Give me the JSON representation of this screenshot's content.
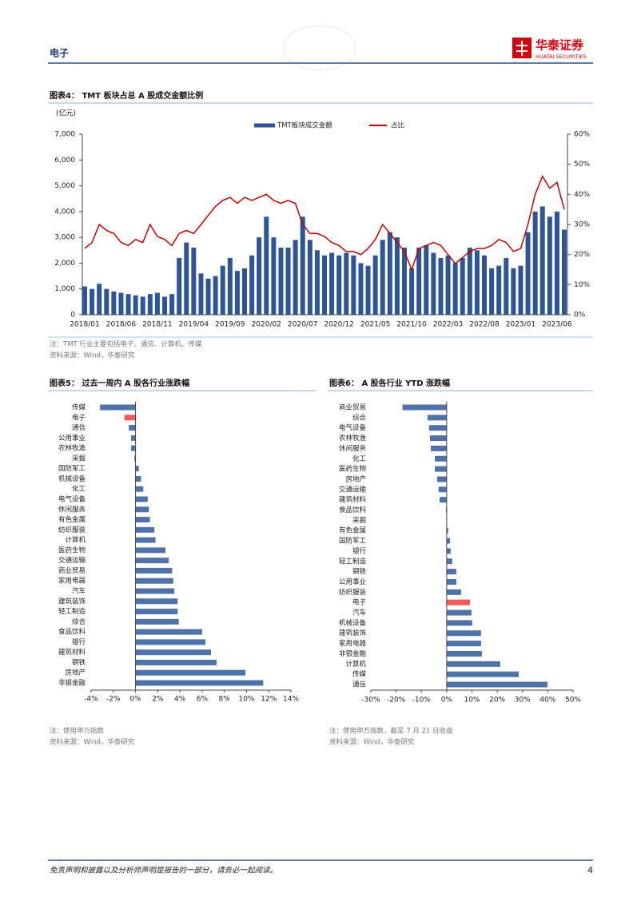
{
  "header": {
    "section": "电子",
    "brand": "华泰证券",
    "brand_en": "HUATAI SECURITIES"
  },
  "chart_data": [
    {
      "type": "combo",
      "title": "图表4： TMT 板块占总 A 股成交金额比例",
      "ylabel": "(亿元)",
      "categories": [
        "2018/01",
        null,
        null,
        null,
        null,
        "2018/06",
        null,
        null,
        null,
        null,
        "2018/11",
        null,
        null,
        null,
        null,
        "2019/04",
        null,
        null,
        null,
        null,
        "2019/09",
        null,
        null,
        null,
        null,
        "2020/02",
        null,
        null,
        null,
        null,
        "2020/07",
        null,
        null,
        null,
        null,
        "2020/12",
        null,
        null,
        null,
        null,
        "2021/05",
        null,
        null,
        null,
        null,
        "2021/10",
        null,
        null,
        null,
        null,
        "2022/03",
        null,
        null,
        null,
        null,
        "2022/08",
        null,
        null,
        null,
        null,
        "2023/01",
        null,
        null,
        null,
        null,
        "2023/06",
        null
      ],
      "series": [
        {
          "name": "TMT板块成交金额",
          "type": "bar",
          "color": "#2f5597",
          "values": [
            1100,
            1000,
            1200,
            1000,
            900,
            850,
            800,
            750,
            700,
            800,
            850,
            700,
            800,
            2200,
            2800,
            2600,
            1600,
            1400,
            1500,
            1900,
            2200,
            1700,
            1800,
            2300,
            3000,
            3800,
            3000,
            2600,
            2600,
            2900,
            3800,
            2900,
            2500,
            2300,
            2400,
            2300,
            2400,
            2300,
            2000,
            1900,
            2300,
            2900,
            3200,
            3000,
            2600,
            1800,
            2600,
            2700,
            2400,
            2200,
            2300,
            2000,
            2200,
            2600,
            2500,
            2300,
            1800,
            1900,
            2200,
            1800,
            1900,
            3200,
            4000,
            4200,
            3800,
            4000,
            3300
          ]
        },
        {
          "name": "占比",
          "type": "line",
          "axis": "y2",
          "color": "#c00000",
          "values": [
            22,
            24,
            30,
            28,
            27,
            24,
            23,
            25,
            24,
            30,
            26,
            25,
            23,
            27,
            28,
            27,
            30,
            33,
            36,
            38,
            39,
            37,
            39,
            38,
            39,
            40,
            38,
            37,
            38,
            37,
            30,
            27,
            27,
            26,
            24,
            23,
            21,
            21,
            20,
            22,
            25,
            30,
            27,
            24,
            21,
            15,
            22,
            23,
            24,
            23,
            20,
            17,
            19,
            21,
            22,
            22,
            23,
            25,
            24,
            21,
            22,
            30,
            40,
            46,
            42,
            44,
            35
          ]
        }
      ],
      "ylim": [
        0,
        7000
      ],
      "yticks": [
        0,
        {
          "value": 1000,
          "label": "1,000"
        },
        {
          "value": 2000,
          "label": "2,000"
        },
        {
          "value": 3000,
          "label": "3,000"
        },
        {
          "value": 4000,
          "label": "4,000"
        },
        {
          "value": 5000,
          "label": "5,000"
        },
        {
          "value": 6000,
          "label": "6,000"
        },
        {
          "value": 7000,
          "label": "7,000"
        }
      ],
      "y2lim": [
        0,
        60
      ],
      "y2ticks": [
        {
          "value": 0,
          "label": "0%"
        },
        {
          "value": 10,
          "label": "10%"
        },
        {
          "value": 20,
          "label": "20%"
        },
        {
          "value": 30,
          "label": "30%"
        },
        {
          "value": 40,
          "label": "40%"
        },
        {
          "value": 50,
          "label": "50%"
        },
        {
          "value": 60,
          "label": "60%"
        }
      ],
      "legend": "top",
      "note": "注：TMT 行业主要包括电子、通信、计算机、传媒",
      "source": "资料来源：Wind，华泰研究"
    },
    {
      "type": "barh",
      "title": "图表5： 过去一周内 A 股各行业涨跌幅",
      "categories": [
        "传媒",
        "电子",
        "通信",
        "公用事业",
        "农林牧渔",
        "采掘",
        "国防军工",
        "机械设备",
        "化工",
        "电气设备",
        "休闲服务",
        "有色金属",
        "纺织服装",
        "计算机",
        "医药生物",
        "交通运输",
        "商业贸易",
        "家用电器",
        "汽车",
        "建筑装饰",
        "轻工制造",
        "综合",
        "食品饮料",
        "银行",
        "建筑材料",
        "钢铁",
        "房地产",
        "非银金融"
      ],
      "values": [
        -3.2,
        -1.0,
        -0.6,
        -0.4,
        -0.4,
        -0.1,
        0.3,
        0.5,
        0.7,
        1.1,
        1.2,
        1.3,
        1.7,
        1.8,
        2.7,
        3.0,
        3.3,
        3.4,
        3.5,
        3.8,
        3.8,
        3.9,
        6.0,
        6.3,
        6.8,
        7.3,
        9.9,
        11.5
      ],
      "colors": [
        "#4f73a8",
        "#f05a5a",
        "#4f73a8",
        "#4f73a8",
        "#4f73a8",
        "#4f73a8",
        "#4f73a8",
        "#4f73a8",
        "#4f73a8",
        "#4f73a8",
        "#4f73a8",
        "#4f73a8",
        "#4f73a8",
        "#4f73a8",
        "#4f73a8",
        "#4f73a8",
        "#4f73a8",
        "#4f73a8",
        "#4f73a8",
        "#4f73a8",
        "#4f73a8",
        "#4f73a8",
        "#4f73a8",
        "#4f73a8",
        "#4f73a8",
        "#4f73a8",
        "#4f73a8",
        "#4f73a8"
      ],
      "xlim": [
        -4,
        14
      ],
      "xticks": [
        {
          "value": -4,
          "label": "-4%"
        },
        {
          "value": -2,
          "label": "-2%"
        },
        {
          "value": 0,
          "label": "0%"
        },
        {
          "value": 2,
          "label": "2%"
        },
        {
          "value": 4,
          "label": "4%"
        },
        {
          "value": 6,
          "label": "6%"
        },
        {
          "value": 8,
          "label": "8%"
        },
        {
          "value": 10,
          "label": "10%"
        },
        {
          "value": 12,
          "label": "12%"
        },
        {
          "value": 14,
          "label": "14%"
        }
      ],
      "note": "注：使用申万指数",
      "source": "资料来源：Wind，华泰研究"
    },
    {
      "type": "barh",
      "title": "图表6： A 股各行业 YTD 涨跌幅",
      "categories": [
        "商业贸易",
        "综合",
        "电气设备",
        "农林牧渔",
        "休闲服务",
        "化工",
        "医药生物",
        "房地产",
        "交通运输",
        "建筑材料",
        "食品饮料",
        "采掘",
        "有色金属",
        "国防军工",
        "银行",
        "轻工制造",
        "钢铁",
        "公用事业",
        "纺织服装",
        "电子",
        "汽车",
        "机械设备",
        "建筑装饰",
        "家用电器",
        "非银金融",
        "计算机",
        "传媒",
        "通信"
      ],
      "values": [
        -17.5,
        -7.6,
        -7.0,
        -6.6,
        -6.3,
        -4.7,
        -4.7,
        -3.8,
        -3.2,
        -2.8,
        -0.3,
        0.1,
        0.6,
        1.3,
        1.6,
        2.2,
        3.8,
        3.8,
        5.7,
        9.2,
        9.8,
        10.1,
        13.6,
        13.6,
        13.9,
        21.2,
        28.5,
        39.9
      ],
      "colors": [
        "#4f73a8",
        "#4f73a8",
        "#4f73a8",
        "#4f73a8",
        "#4f73a8",
        "#4f73a8",
        "#4f73a8",
        "#4f73a8",
        "#4f73a8",
        "#4f73a8",
        "#4f73a8",
        "#4f73a8",
        "#4f73a8",
        "#4f73a8",
        "#4f73a8",
        "#4f73a8",
        "#4f73a8",
        "#4f73a8",
        "#4f73a8",
        "#f05a5a",
        "#4f73a8",
        "#4f73a8",
        "#4f73a8",
        "#4f73a8",
        "#4f73a8",
        "#4f73a8",
        "#4f73a8",
        "#4f73a8"
      ],
      "xlim": [
        -30,
        50
      ],
      "xticks": [
        {
          "value": -30,
          "label": "-30%"
        },
        {
          "value": -20,
          "label": "-20%"
        },
        {
          "value": -10,
          "label": "-10%"
        },
        {
          "value": 0,
          "label": "0%"
        },
        {
          "value": 10,
          "label": "10%"
        },
        {
          "value": 20,
          "label": "20%"
        },
        {
          "value": 30,
          "label": "30%"
        },
        {
          "value": 40,
          "label": "40%"
        },
        {
          "value": 50,
          "label": "50%"
        }
      ],
      "note": "注：使用申万指数，截至 7 月 21 日收盘",
      "source": "资料来源：Wind，华泰研究"
    }
  ],
  "footer": {
    "disclaimer": "免责声明和披露以及分析师声明是报告的一部分，请务必一起阅读。",
    "page": "4"
  }
}
